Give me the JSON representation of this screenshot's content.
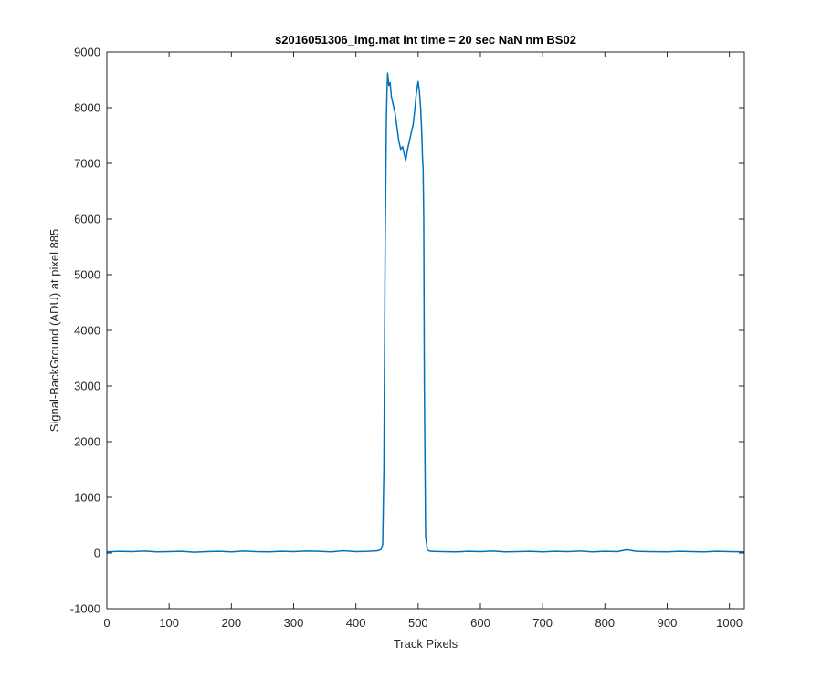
{
  "chart_data": {
    "type": "line",
    "title": "s2016051306_img.mat int time = 20 sec  NaN nm BS02",
    "xlabel": "Track Pixels",
    "ylabel": "Signal-BackGround (ADU) at pixel 885",
    "xlim": [
      0,
      1024
    ],
    "ylim": [
      -1000,
      9000
    ],
    "xticks": [
      0,
      100,
      200,
      300,
      400,
      500,
      600,
      700,
      800,
      900,
      1000
    ],
    "yticks": [
      -1000,
      0,
      1000,
      2000,
      3000,
      4000,
      5000,
      6000,
      7000,
      8000,
      9000
    ],
    "grid": false,
    "legend": "none",
    "line_color": "#0072BD",
    "series": [
      {
        "x": [
          0,
          20,
          40,
          60,
          80,
          100,
          120,
          140,
          160,
          180,
          200,
          220,
          240,
          260,
          280,
          300,
          320,
          340,
          360,
          380,
          400,
          420,
          435,
          440,
          443,
          445,
          447,
          449,
          450,
          451,
          453,
          455,
          457,
          460,
          463,
          466,
          469,
          472,
          475,
          478,
          480,
          483,
          486,
          489,
          492,
          495,
          497,
          499,
          500,
          502,
          504,
          506,
          507,
          508,
          509,
          510,
          512,
          515,
          520,
          540,
          560,
          580,
          600,
          620,
          640,
          660,
          680,
          700,
          720,
          740,
          760,
          780,
          800,
          820,
          835,
          850,
          870,
          900,
          920,
          940,
          960,
          980,
          1000,
          1024
        ],
        "values": [
          20,
          30,
          25,
          35,
          20,
          25,
          30,
          15,
          25,
          30,
          20,
          35,
          25,
          20,
          30,
          25,
          35,
          30,
          20,
          40,
          25,
          30,
          40,
          60,
          150,
          1500,
          5500,
          7800,
          8300,
          8620,
          8400,
          8450,
          8200,
          8050,
          7900,
          7650,
          7400,
          7250,
          7300,
          7150,
          7050,
          7250,
          7400,
          7550,
          7700,
          8000,
          8250,
          8400,
          8470,
          8300,
          8000,
          7500,
          7100,
          6900,
          6000,
          3000,
          300,
          50,
          30,
          25,
          20,
          30,
          25,
          35,
          20,
          25,
          30,
          20,
          30,
          25,
          35,
          20,
          30,
          25,
          60,
          30,
          25,
          20,
          30,
          25,
          20,
          30,
          25,
          20
        ]
      }
    ]
  }
}
